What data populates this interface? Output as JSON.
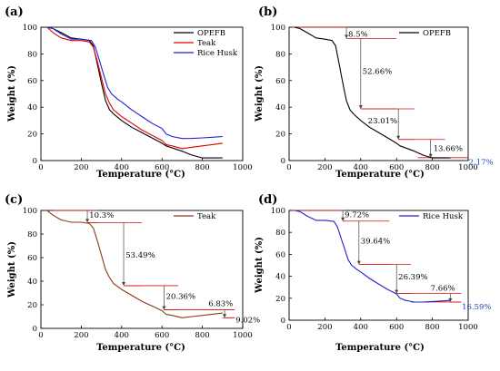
{
  "figure": {
    "panels": [
      "(a)",
      "(b)",
      "(c)",
      "(d)"
    ]
  },
  "colors": {
    "opefb": "#000000",
    "teak": "#e00000",
    "rice_husk": "#1f1fd6",
    "teak_c": "#8a3b14",
    "rice_husk_d": "#2323c8",
    "annotation": "#d01010",
    "arrow": "#444444"
  },
  "chart_data": [
    {
      "type": "line",
      "panel": "(a)",
      "xlabel": "Temperature (°C)",
      "ylabel": "Weight (%)",
      "xlim": [
        0,
        1000
      ],
      "ylim": [
        0,
        100
      ],
      "xticks": [
        0,
        200,
        400,
        600,
        800,
        1000
      ],
      "yticks": [
        0,
        20,
        40,
        60,
        80,
        100
      ],
      "legend_position": "top-right",
      "series": [
        {
          "name": "OPEFB",
          "color_key": "opefb",
          "x": [
            30,
            60,
            100,
            150,
            200,
            240,
            260,
            280,
            300,
            320,
            340,
            360,
            400,
            450,
            500,
            550,
            600,
            620,
            700,
            750,
            800,
            850,
            900
          ],
          "y": [
            100,
            99,
            96,
            92,
            91,
            90,
            86,
            72,
            58,
            45,
            38,
            35,
            30,
            25,
            21,
            17,
            13,
            11,
            7,
            4,
            2,
            2,
            2
          ]
        },
        {
          "name": "Teak",
          "color_key": "teak",
          "x": [
            30,
            60,
            100,
            150,
            200,
            240,
            260,
            280,
            300,
            320,
            340,
            360,
            400,
            450,
            500,
            550,
            600,
            620,
            650,
            700,
            750,
            800,
            850,
            900
          ],
          "y": [
            100,
            96,
            92,
            90,
            90,
            89,
            85,
            74,
            62,
            50,
            43,
            38,
            33,
            28,
            23,
            19,
            15,
            12,
            11,
            9,
            10,
            11,
            12,
            13
          ]
        },
        {
          "name": "Rice Husk",
          "color_key": "rice_husk",
          "x": [
            30,
            60,
            100,
            150,
            200,
            250,
            270,
            290,
            310,
            330,
            350,
            380,
            400,
            450,
            500,
            550,
            600,
            620,
            650,
            700,
            750,
            800,
            850,
            900
          ],
          "y": [
            100,
            99,
            95,
            91,
            91,
            90,
            85,
            75,
            65,
            55,
            50,
            46,
            44,
            38,
            33,
            28,
            24,
            20,
            18,
            16.5,
            16.6,
            17,
            17.5,
            18
          ]
        }
      ]
    },
    {
      "type": "line",
      "panel": "(b)",
      "xlabel": "Temperature (°C)",
      "ylabel": "Weight (%)",
      "xlim": [
        0,
        1000
      ],
      "ylim": [
        0,
        100
      ],
      "xticks": [
        0,
        200,
        400,
        600,
        800,
        1000
      ],
      "yticks": [
        0,
        20,
        40,
        60,
        80,
        100
      ],
      "legend_position": "top-right",
      "series": [
        {
          "name": "OPEFB",
          "color_key": "opefb",
          "x": [
            30,
            60,
            100,
            150,
            200,
            240,
            260,
            280,
            300,
            320,
            340,
            360,
            400,
            450,
            500,
            550,
            600,
            620,
            700,
            750,
            800,
            850,
            900
          ],
          "y": [
            100,
            99,
            96,
            92,
            91,
            90,
            86,
            72,
            58,
            45,
            38,
            35,
            30,
            25,
            21,
            17,
            13,
            11,
            7,
            4,
            2,
            2,
            2
          ]
        }
      ],
      "annotations": [
        {
          "label": "8.5%",
          "x_from": 20,
          "x_to": 320,
          "y_top": 100,
          "y_bottom": 91.5,
          "arrow_x": 320,
          "label_x": 330,
          "label_y": 93
        },
        {
          "label": "52.66%",
          "x_from": 320,
          "x_to": 600,
          "y_top": 91.5,
          "y_bottom": 38.8,
          "arrow_x": 400,
          "label_x": 410,
          "label_y": 65
        },
        {
          "label": "23.01%",
          "x_from": 400,
          "x_to": 700,
          "y_top": 38.8,
          "y_bottom": 15.8,
          "arrow_x": 610,
          "label_x": 440,
          "label_y": 28
        },
        {
          "label": "13.66%",
          "x_from": 610,
          "x_to": 870,
          "y_top": 15.8,
          "y_bottom": 2.17,
          "arrow_x": 790,
          "label_x": 805,
          "label_y": 7
        },
        {
          "label": "2.17%",
          "x_from": 720,
          "x_to": 1000,
          "y_top": 2.17,
          "y_bottom": 2.17,
          "label_x": 1003,
          "label_y": -3,
          "residue": true
        }
      ]
    },
    {
      "type": "line",
      "panel": "(c)",
      "xlabel": "Temperature (°C)",
      "ylabel": "Weight (%)",
      "xlim": [
        0,
        1000
      ],
      "ylim": [
        0,
        100
      ],
      "xticks": [
        0,
        200,
        400,
        600,
        800,
        1000
      ],
      "yticks": [
        0,
        20,
        40,
        60,
        80,
        100
      ],
      "legend_position": "top-right",
      "series": [
        {
          "name": "Teak",
          "color_key": "teak_c",
          "x": [
            30,
            60,
            100,
            150,
            200,
            240,
            260,
            280,
            300,
            320,
            340,
            360,
            400,
            450,
            500,
            550,
            600,
            620,
            650,
            700,
            750,
            800,
            850,
            900
          ],
          "y": [
            100,
            96,
            92,
            90,
            90,
            89,
            85,
            74,
            62,
            50,
            43,
            38,
            33,
            28,
            23,
            19,
            15,
            12,
            11,
            9,
            10,
            11,
            12,
            13
          ]
        }
      ],
      "annotations": [
        {
          "label": "10.3%",
          "x_from": 60,
          "x_to": 280,
          "y_top": 100,
          "y_bottom": 89.7,
          "arrow_x": 230,
          "label_x": 240,
          "label_y": 94
        },
        {
          "label": "53.49%",
          "x_from": 230,
          "x_to": 500,
          "y_top": 89.7,
          "y_bottom": 36.2,
          "arrow_x": 410,
          "label_x": 420,
          "label_y": 60
        },
        {
          "label": "20.36%",
          "x_from": 410,
          "x_to": 680,
          "y_top": 36.2,
          "y_bottom": 15.8,
          "arrow_x": 610,
          "label_x": 620,
          "label_y": 25
        },
        {
          "label": "6.83%",
          "x_from": 610,
          "x_to": 960,
          "y_top": 15.8,
          "y_bottom": 9.0,
          "arrow_x": 910,
          "label_x": 830,
          "label_y": 19
        },
        {
          "label": "9.02%",
          "x_from": 900,
          "x_to": 960,
          "y_top": 9.02,
          "y_bottom": 9.02,
          "label_x": 965,
          "label_y": 5,
          "residue": true
        }
      ]
    },
    {
      "type": "line",
      "panel": "(d)",
      "xlabel": "Temperature (°C)",
      "ylabel": "Weight (%)",
      "xlim": [
        0,
        1000
      ],
      "ylim": [
        0,
        100
      ],
      "xticks": [
        0,
        200,
        400,
        600,
        800,
        1000
      ],
      "yticks": [
        0,
        20,
        40,
        60,
        80,
        100
      ],
      "legend_position": "top-right",
      "series": [
        {
          "name": "Rice Husk",
          "color_key": "rice_husk_d",
          "x": [
            30,
            60,
            100,
            150,
            200,
            250,
            270,
            290,
            310,
            330,
            350,
            380,
            400,
            450,
            500,
            550,
            600,
            620,
            650,
            700,
            750,
            800,
            850,
            900
          ],
          "y": [
            100,
            99,
            95,
            91,
            91,
            90,
            85,
            75,
            65,
            55,
            50,
            46,
            44,
            38,
            33,
            28,
            24,
            20,
            18,
            16.5,
            16.6,
            17,
            17.5,
            18
          ]
        }
      ],
      "annotations": [
        {
          "label": "9.72%",
          "x_from": 20,
          "x_to": 310,
          "y_top": 100,
          "y_bottom": 90.3,
          "arrow_x": 300,
          "label_x": 310,
          "label_y": 94
        },
        {
          "label": "39.64%",
          "x_from": 300,
          "x_to": 560,
          "y_top": 90.3,
          "y_bottom": 50.7,
          "arrow_x": 390,
          "label_x": 400,
          "label_y": 70
        },
        {
          "label": "26.39%",
          "x_from": 390,
          "x_to": 680,
          "y_top": 50.7,
          "y_bottom": 24.3,
          "arrow_x": 600,
          "label_x": 610,
          "label_y": 37
        },
        {
          "label": "7.66%",
          "x_from": 600,
          "x_to": 960,
          "y_top": 24.3,
          "y_bottom": 16.6,
          "arrow_x": 900,
          "label_x": 790,
          "label_y": 27
        },
        {
          "label": "16.59%",
          "x_from": 680,
          "x_to": 960,
          "y_top": 16.59,
          "y_bottom": 16.59,
          "label_x": 965,
          "label_y": 10,
          "residue": true
        }
      ]
    }
  ]
}
